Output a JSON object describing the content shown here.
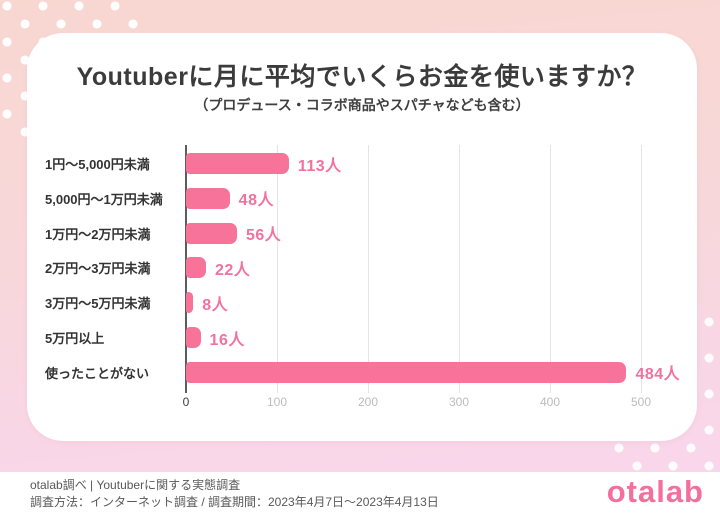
{
  "colors": {
    "bg_top": "#f8d7d1",
    "bg_bottom": "#fad6ef",
    "bar": "#f7739a",
    "value_label": "#f2719e",
    "logo": "#f56f9d"
  },
  "card": {
    "title": "Youtuberに月に平均でいくらお金を使いますか？",
    "subtitle": "（プロデュース・コラボ商品やスパチャなども含む）"
  },
  "chart_data": {
    "type": "bar",
    "orientation": "horizontal",
    "title": "Youtuberに月に平均でいくらお金を使いますか？",
    "subtitle": "（プロデュース・コラボ商品やスパチャなども含む）",
    "categories": [
      "1円〜5,000円未満",
      "5,000円〜1万円未満",
      "1万円〜2万円未満",
      "2万円〜3万円未満",
      "3万円〜5万円未満",
      "5万円以上",
      "使ったことがない"
    ],
    "values": [
      113,
      48,
      56,
      22,
      8,
      16,
      484
    ],
    "value_labels": [
      "113人",
      "48人",
      "56人",
      "22人",
      "8人",
      "16人",
      "484人"
    ],
    "unit": "人",
    "x_ticks": [
      0,
      100,
      200,
      300,
      400,
      500
    ],
    "xlim": [
      0,
      500
    ],
    "grid": true,
    "bar_color": "#f7739a",
    "value_label_color": "#f2719e"
  },
  "footer": {
    "line1": "otalab調べ | Youtuberに関する実態調査",
    "line2": "調査方法：インターネット調査 / 調査期間：2023年4月7日〜2023年4月13日",
    "logo_text": "otalab"
  }
}
